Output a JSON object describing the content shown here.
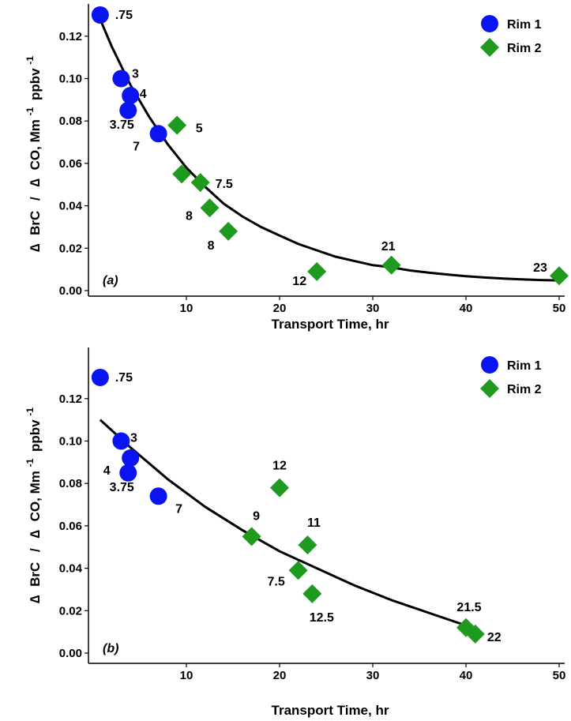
{
  "colors": {
    "rim1": "#0a14f0",
    "rim2": "#1e9a1e",
    "fit": "#000000",
    "axis": "#000000"
  },
  "chart_data": [
    {
      "type": "scatter",
      "panel_label": "(a)",
      "xlabel": "Transport Time, hr",
      "ylabel": "∆ BrC / ∆ CO, Mm-1 ppbv-1",
      "ylabel_parts": {
        "delta1": "∆",
        "brc": "BrC",
        "slash": "/",
        "delta2": "∆",
        "co": "CO, Mm",
        "exp1": "-1",
        "ppbv": "ppbv",
        "exp2": "-1"
      },
      "xlim": [
        0,
        50
      ],
      "ylim": [
        0,
        0.13
      ],
      "xticks": [
        10,
        20,
        30,
        40,
        50
      ],
      "xtick_labels": [
        "10",
        "20",
        "30",
        "40",
        "50"
      ],
      "yticks": [
        0.0,
        0.02,
        0.04,
        0.06,
        0.08,
        0.1,
        0.12
      ],
      "ytick_labels": [
        "0.00",
        "0.02",
        "0.04",
        "0.06",
        "0.08",
        "0.10",
        "0.12"
      ],
      "legend_position": "top-right",
      "series": [
        {
          "name": "Rim 1",
          "marker": "circle",
          "points": [
            {
              "x": 0.75,
              "y": 0.13,
              "label": ".75"
            },
            {
              "x": 3.0,
              "y": 0.1,
              "label": "3"
            },
            {
              "x": 4.0,
              "y": 0.092,
              "label": "4"
            },
            {
              "x": 3.75,
              "y": 0.085,
              "label": "3.75"
            },
            {
              "x": 7.0,
              "y": 0.074,
              "label": "7"
            }
          ]
        },
        {
          "name": "Rim 2",
          "marker": "diamond",
          "points": [
            {
              "x": 9.0,
              "y": 0.078,
              "label": "5"
            },
            {
              "x": 9.5,
              "y": 0.055,
              "label": ""
            },
            {
              "x": 11.5,
              "y": 0.051,
              "label": "7.5"
            },
            {
              "x": 12.5,
              "y": 0.039,
              "label": "8"
            },
            {
              "x": 14.5,
              "y": 0.028,
              "label": "8"
            },
            {
              "x": 24.0,
              "y": 0.009,
              "label": "12"
            },
            {
              "x": 32.0,
              "y": 0.012,
              "label": "21"
            },
            {
              "x": 50.0,
              "y": 0.007,
              "label": "23"
            }
          ]
        }
      ],
      "fit": {
        "x": [
          0.75,
          2,
          4,
          6,
          8,
          10,
          12,
          14,
          16,
          18,
          20,
          22,
          24,
          26,
          28,
          30,
          32,
          34,
          36,
          38,
          40,
          42,
          44,
          46,
          48,
          50
        ],
        "y": [
          0.128,
          0.115,
          0.097,
          0.082,
          0.069,
          0.058,
          0.049,
          0.041,
          0.035,
          0.03,
          0.026,
          0.022,
          0.019,
          0.016,
          0.014,
          0.012,
          0.011,
          0.0095,
          0.0085,
          0.0076,
          0.0068,
          0.0062,
          0.0057,
          0.0053,
          0.005,
          0.0048
        ]
      }
    },
    {
      "type": "scatter",
      "panel_label": "(b)",
      "xlabel": "Transport Time, hr",
      "ylabel": "∆ BrC / ∆ CO, Mm-1 ppbv-1",
      "ylabel_parts": {
        "delta1": "∆",
        "brc": "BrC",
        "slash": "/",
        "delta2": "∆",
        "co": "CO, Mm",
        "exp1": "-1",
        "ppbv": "ppbv",
        "exp2": "-1"
      },
      "xlim": [
        0,
        50
      ],
      "ylim": [
        0,
        0.13
      ],
      "xticks": [
        10,
        20,
        30,
        40,
        50
      ],
      "xtick_labels": [
        "10",
        "20",
        "30",
        "40",
        "50"
      ],
      "yticks": [
        0.0,
        0.02,
        0.04,
        0.06,
        0.08,
        0.1,
        0.12
      ],
      "ytick_labels": [
        "0.00",
        "0.02",
        "0.04",
        "0.06",
        "0.08",
        "0.10",
        "0.12"
      ],
      "legend_position": "top-right",
      "series": [
        {
          "name": "Rim 1",
          "marker": "circle",
          "points": [
            {
              "x": 0.75,
              "y": 0.13,
              "label": ".75"
            },
            {
              "x": 3.0,
              "y": 0.1,
              "label": "3"
            },
            {
              "x": 4.0,
              "y": 0.092,
              "label": "4"
            },
            {
              "x": 3.75,
              "y": 0.085,
              "label": "3.75"
            },
            {
              "x": 7.0,
              "y": 0.074,
              "label": "7"
            }
          ]
        },
        {
          "name": "Rim 2",
          "marker": "diamond",
          "points": [
            {
              "x": 20.0,
              "y": 0.078,
              "label": "12"
            },
            {
              "x": 17.0,
              "y": 0.055,
              "label": "9"
            },
            {
              "x": 23.0,
              "y": 0.051,
              "label": "11"
            },
            {
              "x": 22.0,
              "y": 0.039,
              "label": "7.5"
            },
            {
              "x": 23.5,
              "y": 0.028,
              "label": "12.5"
            },
            {
              "x": 40.0,
              "y": 0.012,
              "label": "21.5"
            },
            {
              "x": 41.0,
              "y": 0.009,
              "label": "22"
            }
          ]
        }
      ],
      "fit": {
        "x": [
          0.75,
          4,
          8,
          12,
          16,
          20,
          24,
          28,
          32,
          36,
          40,
          41
        ],
        "y": [
          0.11,
          0.097,
          0.082,
          0.069,
          0.058,
          0.048,
          0.04,
          0.032,
          0.025,
          0.019,
          0.013,
          0.012
        ]
      }
    }
  ]
}
